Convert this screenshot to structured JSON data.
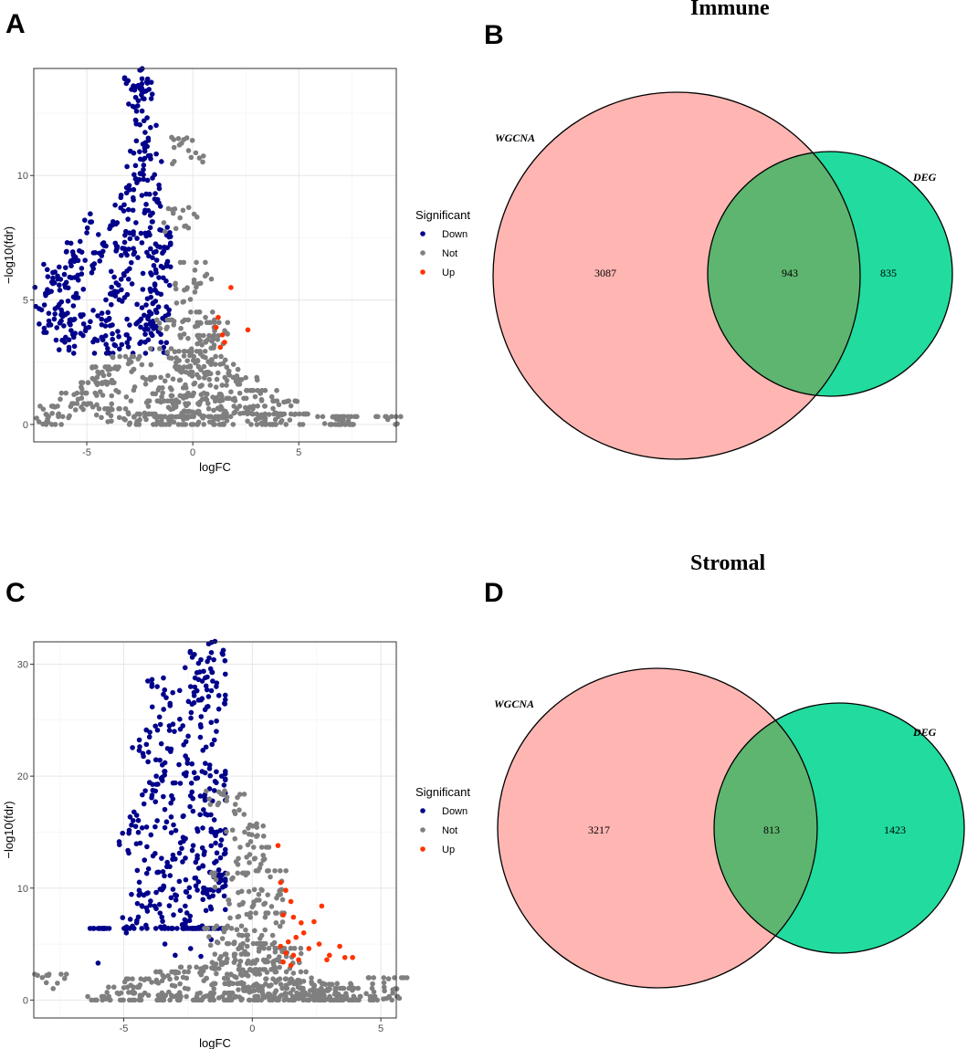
{
  "panels": {
    "A": "A",
    "B": "B",
    "C": "C",
    "D": "D"
  },
  "colors": {
    "down": "#00008B",
    "not": "#7F7F7F",
    "up": "#FF3300",
    "wgcna_fill": "#FFB6B3",
    "deg_fill": "#22DB9E",
    "overlap_fill": "#5DB56F"
  },
  "chart_data": [
    {
      "id": "volcano-immune",
      "type": "scatter",
      "title": "",
      "xlabel": "logFC",
      "ylabel": "−log10(fdr)",
      "xlim": [
        -7.5,
        9.6
      ],
      "ylim": [
        -0.7,
        14.3
      ],
      "xticks": [
        -5,
        0,
        5
      ],
      "yticks": [
        0,
        5,
        10
      ],
      "grid": true,
      "legend": {
        "title": "Significant",
        "position": "right",
        "entries": [
          "Down",
          "Not",
          "Up"
        ]
      },
      "series": [
        {
          "name": "Down",
          "color": "#00008B",
          "points": [
            [
              -2.8,
              13.6
            ],
            [
              -2.5,
              13.5
            ],
            [
              -2.2,
              13.4
            ],
            [
              -2.6,
              12.8
            ],
            [
              -2.3,
              12.2
            ],
            [
              -2.1,
              11.5
            ],
            [
              -2.0,
              10.8
            ],
            [
              -2.7,
              10.4
            ],
            [
              -3.0,
              9.6
            ],
            [
              -1.9,
              9.9
            ],
            [
              -2.4,
              9.2
            ],
            [
              -3.4,
              8.7
            ],
            [
              -2.0,
              8.4
            ],
            [
              -1.6,
              8.9
            ],
            [
              -3.8,
              8.0
            ],
            [
              -4.2,
              7.3
            ],
            [
              -5.0,
              7.7
            ],
            [
              -4.6,
              6.9
            ],
            [
              -5.6,
              6.7
            ],
            [
              -6.6,
              6.1
            ],
            [
              -6.0,
              6.3
            ],
            [
              -5.4,
              5.8
            ],
            [
              -6.3,
              5.6
            ],
            [
              -6.8,
              5.3
            ],
            [
              -7.0,
              4.8
            ],
            [
              -6.2,
              4.6
            ],
            [
              -5.8,
              4.2
            ],
            [
              -6.7,
              4.0
            ],
            [
              -6.0,
              3.5
            ],
            [
              -5.3,
              4.4
            ],
            [
              -4.9,
              3.9
            ],
            [
              -4.3,
              3.5
            ],
            [
              -3.7,
              3.2
            ],
            [
              -3.1,
              3.6
            ],
            [
              -2.6,
              4.1
            ],
            [
              -2.2,
              4.8
            ],
            [
              -1.8,
              5.4
            ],
            [
              -1.5,
              3.3
            ],
            [
              -1.3,
              4.2
            ],
            [
              -1.4,
              6.3
            ],
            [
              -1.2,
              7.1
            ],
            [
              -1.6,
              5.9
            ],
            [
              -2.9,
              6.5
            ],
            [
              -3.5,
              5.6
            ],
            [
              -4.0,
              4.5
            ],
            [
              -2.4,
              7.3
            ],
            [
              -1.9,
              6.7
            ],
            [
              -3.2,
              7.6
            ],
            [
              -2.1,
              3.4
            ],
            [
              -1.7,
              4.5
            ]
          ]
        },
        {
          "name": "Not",
          "color": "#7F7F7F",
          "points": [
            [
              -6.9,
              0.1
            ],
            [
              -6.5,
              0.7
            ],
            [
              -5.6,
              1.2
            ],
            [
              -5.0,
              0.8
            ],
            [
              -4.5,
              1.6
            ],
            [
              -4.0,
              2.2
            ],
            [
              -3.5,
              1.3
            ],
            [
              -3.0,
              2.6
            ],
            [
              -2.5,
              0.4
            ],
            [
              -2.0,
              1.8
            ],
            [
              -1.5,
              0.9
            ],
            [
              -1.2,
              2.9
            ],
            [
              -1.0,
              1.4
            ],
            [
              -0.8,
              0.3
            ],
            [
              -0.5,
              2.2
            ],
            [
              -0.3,
              1.1
            ],
            [
              0.0,
              0.5
            ],
            [
              0.2,
              2.0
            ],
            [
              0.4,
              1.2
            ],
            [
              0.7,
              3.4
            ],
            [
              0.9,
              2.6
            ],
            [
              1.1,
              1.5
            ],
            [
              1.3,
              0.6
            ],
            [
              1.6,
              2.3
            ],
            [
              1.9,
              1.0
            ],
            [
              2.3,
              1.8
            ],
            [
              2.7,
              0.7
            ],
            [
              3.2,
              1.3
            ],
            [
              3.6,
              0.4
            ],
            [
              4.3,
              0.9
            ],
            [
              4.8,
              0.4
            ],
            [
              6.6,
              0.3
            ],
            [
              7.0,
              0.0
            ],
            [
              9.2,
              0.2
            ],
            [
              -0.9,
              4.0
            ],
            [
              -0.4,
              5.4
            ],
            [
              0.1,
              6.2
            ],
            [
              -0.6,
              8.3
            ],
            [
              -0.2,
              11.0
            ],
            [
              0.6,
              4.3
            ],
            [
              1.0,
              3.9
            ],
            [
              0.3,
              0.8
            ],
            [
              -0.1,
              2.8
            ],
            [
              -1.1,
              0.1
            ],
            [
              0.8,
              0.1
            ],
            [
              1.5,
              0.3
            ],
            [
              -2.2,
              0.2
            ],
            [
              2.0,
              0.5
            ],
            [
              -3.8,
              0.6
            ],
            [
              3.9,
              0.2
            ]
          ]
        },
        {
          "name": "Up",
          "color": "#FF3300",
          "points": [
            [
              1.8,
              5.5
            ],
            [
              2.6,
              3.8
            ],
            [
              1.2,
              4.3
            ],
            [
              1.4,
              3.6
            ],
            [
              1.1,
              3.9
            ],
            [
              1.3,
              3.1
            ],
            [
              1.5,
              3.3
            ]
          ]
        }
      ]
    },
    {
      "id": "volcano-stromal",
      "type": "scatter",
      "title": "",
      "xlabel": "logFC",
      "ylabel": "−log10(fdr)",
      "xlim": [
        -8.5,
        5.6
      ],
      "ylim": [
        -1.6,
        32.0
      ],
      "xticks": [
        -5,
        0,
        5
      ],
      "yticks": [
        0,
        10,
        20,
        30
      ],
      "grid": true,
      "legend": {
        "title": "Significant",
        "position": "right",
        "entries": [
          "Down",
          "Not",
          "Up"
        ]
      },
      "series": [
        {
          "name": "Down",
          "color": "#00008B",
          "points": [
            [
              -2.0,
              30.4
            ],
            [
              -1.5,
              30.4
            ],
            [
              -3.7,
              28.0
            ],
            [
              -2.4,
              28.0
            ],
            [
              -1.4,
              28.0
            ],
            [
              -3.2,
              26.5
            ],
            [
              -2.0,
              26.8
            ],
            [
              -1.3,
              27.2
            ],
            [
              -4.0,
              23.5
            ],
            [
              -2.8,
              24.2
            ],
            [
              -1.6,
              24.8
            ],
            [
              -4.4,
              22.3
            ],
            [
              -3.5,
              21.0
            ],
            [
              -2.6,
              21.8
            ],
            [
              -1.8,
              22.6
            ],
            [
              -4.6,
              16.8
            ],
            [
              -3.9,
              18.3
            ],
            [
              -3.0,
              19.4
            ],
            [
              -2.2,
              19.8
            ],
            [
              -1.4,
              20.4
            ],
            [
              -4.8,
              14.9
            ],
            [
              -4.1,
              13.7
            ],
            [
              -3.4,
              15.4
            ],
            [
              -2.7,
              16.4
            ],
            [
              -1.9,
              17.0
            ],
            [
              -4.4,
              9.8
            ],
            [
              -3.7,
              11.4
            ],
            [
              -3.0,
              12.6
            ],
            [
              -2.3,
              13.8
            ],
            [
              -1.5,
              15.0
            ],
            [
              -4.5,
              6.9
            ],
            [
              -3.8,
              8.4
            ],
            [
              -3.0,
              9.4
            ],
            [
              -2.2,
              10.9
            ],
            [
              -1.4,
              12.4
            ],
            [
              -6.0,
              3.3
            ],
            [
              -4.9,
              6.0
            ],
            [
              -3.4,
              5.0
            ],
            [
              -2.6,
              6.6
            ],
            [
              -1.8,
              8.0
            ],
            [
              -1.3,
              9.8
            ],
            [
              -3.0,
              4.0
            ],
            [
              -2.0,
              3.9
            ],
            [
              -1.6,
              5.4
            ],
            [
              -2.4,
              4.6
            ],
            [
              -1.2,
              14.3
            ],
            [
              -1.1,
              19.2
            ],
            [
              -1.5,
              11.0
            ],
            [
              -2.8,
              8.0
            ],
            [
              -3.5,
              19.6
            ]
          ]
        },
        {
          "name": "Not",
          "color": "#7F7F7F",
          "points": [
            [
              -8.0,
              2.2
            ],
            [
              -5.7,
              0.1
            ],
            [
              -5.0,
              1.1
            ],
            [
              -4.2,
              1.8
            ],
            [
              -3.6,
              0.4
            ],
            [
              -3.0,
              2.4
            ],
            [
              -2.5,
              1.0
            ],
            [
              -2.0,
              2.8
            ],
            [
              -1.5,
              0.6
            ],
            [
              -1.2,
              3.2
            ],
            [
              -0.9,
              1.4
            ],
            [
              -0.6,
              6.3
            ],
            [
              -0.4,
              2.2
            ],
            [
              -0.2,
              4.8
            ],
            [
              0.0,
              0.8
            ],
            [
              0.2,
              2.6
            ],
            [
              0.4,
              1.2
            ],
            [
              0.6,
              9.4
            ],
            [
              0.8,
              3.4
            ],
            [
              1.0,
              1.8
            ],
            [
              1.3,
              0.6
            ],
            [
              1.6,
              2.4
            ],
            [
              1.9,
              1.0
            ],
            [
              2.3,
              1.6
            ],
            [
              2.7,
              0.5
            ],
            [
              3.1,
              1.4
            ],
            [
              3.5,
              0.3
            ],
            [
              3.9,
              1.0
            ],
            [
              5.3,
              1.9
            ],
            [
              5.1,
              0.1
            ],
            [
              -0.8,
              10.8
            ],
            [
              -0.3,
              15.0
            ],
            [
              -0.1,
              13.0
            ],
            [
              0.7,
              11.0
            ],
            [
              -1.0,
              17.8
            ],
            [
              -0.5,
              8.5
            ],
            [
              0.3,
              5.5
            ],
            [
              -1.3,
              0.2
            ],
            [
              0.9,
              0.2
            ],
            [
              2.0,
              0.3
            ],
            [
              -2.8,
              0.2
            ],
            [
              -4.6,
              0.6
            ],
            [
              1.2,
              4.4
            ],
            [
              0.5,
              7.4
            ],
            [
              -0.7,
              3.9
            ],
            [
              -1.1,
              6.1
            ],
            [
              0.1,
              3.3
            ],
            [
              -0.4,
              0.1
            ],
            [
              2.6,
              0.8
            ],
            [
              3.3,
              0.2
            ]
          ]
        },
        {
          "name": "Up",
          "color": "#FF3300",
          "points": [
            [
              1.0,
              13.8
            ],
            [
              1.1,
              10.5
            ],
            [
              1.3,
              9.8
            ],
            [
              1.5,
              8.8
            ],
            [
              1.2,
              7.6
            ],
            [
              1.6,
              7.4
            ],
            [
              1.9,
              6.9
            ],
            [
              2.7,
              8.4
            ],
            [
              2.4,
              7.0
            ],
            [
              2.0,
              6.0
            ],
            [
              1.7,
              5.6
            ],
            [
              1.4,
              5.2
            ],
            [
              1.1,
              4.8
            ],
            [
              1.3,
              4.2
            ],
            [
              1.6,
              4.0
            ],
            [
              2.2,
              4.6
            ],
            [
              2.6,
              5.0
            ],
            [
              3.0,
              4.0
            ],
            [
              3.4,
              4.8
            ],
            [
              3.9,
              3.8
            ],
            [
              3.6,
              3.8
            ],
            [
              1.8,
              3.6
            ],
            [
              1.2,
              3.4
            ],
            [
              2.9,
              3.6
            ],
            [
              1.5,
              3.1
            ]
          ]
        }
      ]
    },
    {
      "id": "venn-immune",
      "type": "venn",
      "title": "Immune",
      "sets": [
        "WGCNA",
        "DEG"
      ],
      "only_a": "3087",
      "intersection": "943",
      "only_b": "835"
    },
    {
      "id": "venn-stromal",
      "type": "venn",
      "title": "Stromal",
      "sets": [
        "WGCNA",
        "DEG"
      ],
      "only_a": "3217",
      "intersection": "813",
      "only_b": "1423"
    }
  ]
}
